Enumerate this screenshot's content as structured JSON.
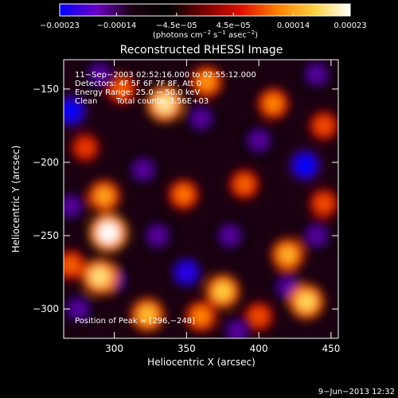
{
  "chart_data": {
    "type": "heatmap",
    "title": "Reconstructed RHESSI Image",
    "xlabel": "Heliocentric X (arcsec)",
    "ylabel": "Heliocentric Y (arcsec)",
    "xlim": [
      265,
      455
    ],
    "ylim": [
      -320,
      -130
    ],
    "x_ticks": [
      300,
      350,
      400,
      450
    ],
    "y_ticks": [
      -150,
      -200,
      -250,
      -300
    ],
    "x_tick_labels": [
      "300",
      "350",
      "400",
      "450"
    ],
    "y_tick_labels": [
      "−150",
      "−200",
      "−250",
      "−300"
    ],
    "colorbar": {
      "range": [
        -0.00023,
        0.00023
      ],
      "ticks": [
        -0.00023,
        -0.00014,
        -4.5e-05,
        4.5e-05,
        0.00014,
        0.00023
      ],
      "tick_labels": [
        "−0.00023",
        "−0.00014",
        "−4.5e−05",
        "4.5e−05",
        "0.00014",
        "0.00023"
      ],
      "colors": [
        "#0000ff",
        "#6a00c8",
        "#1a0010",
        "#000000",
        "#7a0000",
        "#e01000",
        "#ff8000",
        "#ffd040",
        "#ffffff"
      ]
    },
    "units_label": {
      "prefix": "(photons cm",
      "sup1": "−2",
      "mid1": " s",
      "sup2": "−1",
      "mid2": " asec",
      "sup3": "−2",
      "suffix": ")"
    },
    "annotations": {
      "time_range": "11−Sep−2003 02:52:16.000 to 02:55:12.000",
      "detectors": "Detectors: 4F 5F 6F 7F 8F, Att 0",
      "energy": "Energy Range: 25.0 − 50.0 keV",
      "method": "Clean",
      "counts": "Total counts: 3.56E+03",
      "peak": "Position of Peak = [296,−248]"
    },
    "blobs": [
      {
        "x": 270,
        "y": -165,
        "v": -0.00023
      },
      {
        "x": 432,
        "y": -202,
        "v": -0.00023
      },
      {
        "x": 350,
        "y": -275,
        "v": -0.00021
      },
      {
        "x": 290,
        "y": -140,
        "v": -0.00016
      },
      {
        "x": 320,
        "y": -205,
        "v": -0.00016
      },
      {
        "x": 400,
        "y": -185,
        "v": -0.00016
      },
      {
        "x": 440,
        "y": -140,
        "v": -0.00016
      },
      {
        "x": 270,
        "y": -230,
        "v": -0.00016
      },
      {
        "x": 330,
        "y": -250,
        "v": -0.00016
      },
      {
        "x": 380,
        "y": -250,
        "v": -0.00016
      },
      {
        "x": 300,
        "y": -280,
        "v": -0.00016
      },
      {
        "x": 275,
        "y": -300,
        "v": -0.00016
      },
      {
        "x": 385,
        "y": -315,
        "v": -0.00016
      },
      {
        "x": 420,
        "y": -285,
        "v": -0.00016
      },
      {
        "x": 360,
        "y": -170,
        "v": -0.00016
      },
      {
        "x": 440,
        "y": -250,
        "v": -0.00016
      },
      {
        "x": 296,
        "y": -248,
        "v": 0.00023
      },
      {
        "x": 335,
        "y": -160,
        "v": 0.0002
      },
      {
        "x": 290,
        "y": -278,
        "v": 0.00019
      },
      {
        "x": 433,
        "y": -295,
        "v": 0.00018
      },
      {
        "x": 375,
        "y": -288,
        "v": 0.00017
      },
      {
        "x": 323,
        "y": -304,
        "v": 0.00016
      },
      {
        "x": 420,
        "y": -263,
        "v": 0.00015
      },
      {
        "x": 293,
        "y": -223,
        "v": 0.00014
      },
      {
        "x": 364,
        "y": -145,
        "v": 0.00013
      },
      {
        "x": 410,
        "y": -160,
        "v": 0.00012
      },
      {
        "x": 348,
        "y": -222,
        "v": 0.00011
      },
      {
        "x": 305,
        "y": -150,
        "v": 0.0001
      },
      {
        "x": 270,
        "y": -270,
        "v": 0.0001
      },
      {
        "x": 390,
        "y": -215,
        "v": 0.0001
      },
      {
        "x": 445,
        "y": -228,
        "v": 9e-05
      },
      {
        "x": 360,
        "y": -305,
        "v": 0.00012
      },
      {
        "x": 400,
        "y": -305,
        "v": 9e-05
      },
      {
        "x": 280,
        "y": -190,
        "v": 8e-05
      },
      {
        "x": 445,
        "y": -175,
        "v": 9e-05
      }
    ]
  },
  "footer": {
    "date": "9−Jun−2013 12:32"
  }
}
